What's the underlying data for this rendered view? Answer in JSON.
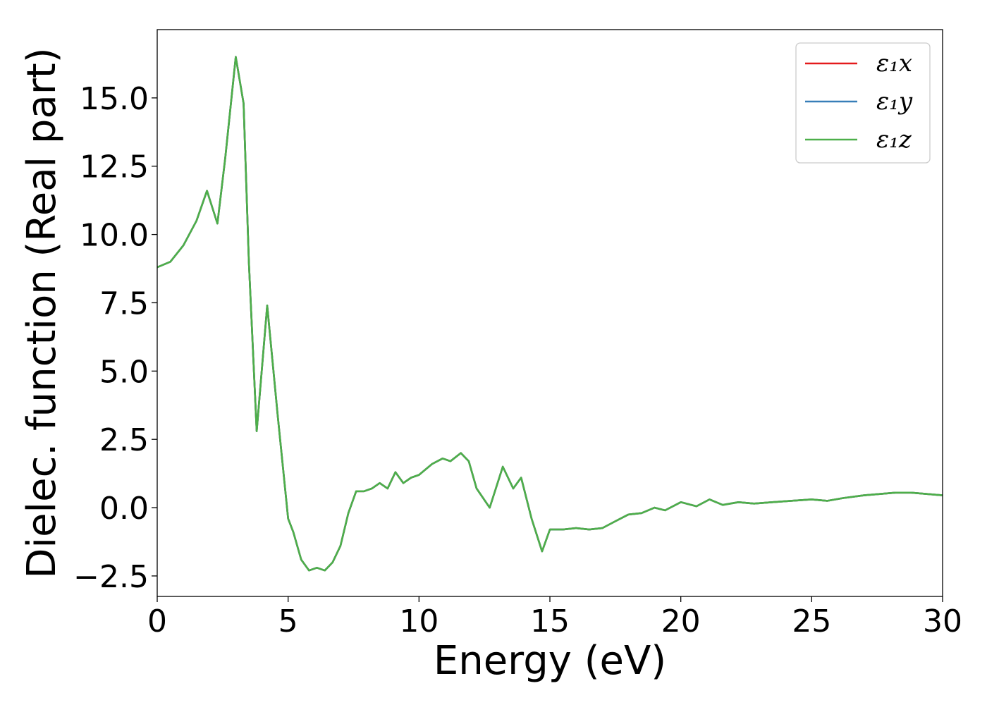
{
  "chart_data": {
    "type": "line",
    "title": "",
    "xlabel": "Energy (eV)",
    "ylabel": "Dielec. function (Real part)",
    "xlim": [
      0,
      30
    ],
    "ylim": [
      -3.25,
      17.5
    ],
    "xticks": [
      0,
      5,
      10,
      15,
      20,
      25,
      30
    ],
    "xtick_labels": [
      "0",
      "5",
      "10",
      "15",
      "20",
      "25",
      "30"
    ],
    "yticks": [
      -2.5,
      0,
      2.5,
      5,
      7.5,
      10,
      12.5,
      15
    ],
    "ytick_labels": [
      "−2.5",
      "0.0",
      "2.5",
      "5.0",
      "7.5",
      "10.0",
      "12.5",
      "15.0"
    ],
    "grid": false,
    "legend_position": "top-right",
    "x": [
      0,
      0.5,
      1.0,
      1.5,
      1.9,
      2.3,
      2.6,
      3.0,
      3.3,
      3.5,
      3.8,
      4.2,
      4.6,
      5.0,
      5.2,
      5.5,
      5.8,
      6.1,
      6.4,
      6.7,
      7.0,
      7.3,
      7.6,
      7.9,
      8.2,
      8.5,
      8.8,
      9.1,
      9.4,
      9.7,
      10.0,
      10.5,
      10.9,
      11.2,
      11.6,
      11.9,
      12.2,
      12.7,
      13.2,
      13.6,
      13.9,
      14.3,
      14.7,
      15.0,
      15.5,
      16.0,
      16.5,
      17.0,
      17.5,
      18.0,
      18.5,
      19.0,
      19.4,
      20.0,
      20.6,
      21.1,
      21.6,
      22.2,
      22.8,
      23.5,
      24.2,
      25.0,
      25.6,
      26.2,
      27.0,
      27.6,
      28.2,
      28.8,
      29.4,
      30.0
    ],
    "series": [
      {
        "name": "ε₁x",
        "color": "#e41a1c",
        "y": [
          8.8,
          9.0,
          9.6,
          10.5,
          11.6,
          10.4,
          12.8,
          16.5,
          14.8,
          9.0,
          2.8,
          7.4,
          3.4,
          -0.4,
          -0.9,
          -1.9,
          -2.3,
          -2.2,
          -2.3,
          -2.0,
          -1.4,
          -0.2,
          0.6,
          0.6,
          0.7,
          0.9,
          0.7,
          1.3,
          0.9,
          1.1,
          1.2,
          1.6,
          1.8,
          1.7,
          2.0,
          1.7,
          0.7,
          0.0,
          1.5,
          0.7,
          1.1,
          -0.4,
          -1.6,
          -0.8,
          -0.8,
          -0.75,
          -0.8,
          -0.75,
          -0.5,
          -0.25,
          -0.2,
          0.0,
          -0.1,
          0.2,
          0.05,
          0.3,
          0.1,
          0.2,
          0.15,
          0.2,
          0.25,
          0.3,
          0.25,
          0.35,
          0.45,
          0.5,
          0.55,
          0.55,
          0.5,
          0.45
        ]
      },
      {
        "name": "ε₁y",
        "color": "#377eb8",
        "y": [
          8.8,
          9.0,
          9.6,
          10.5,
          11.6,
          10.4,
          12.8,
          16.5,
          14.8,
          9.0,
          2.8,
          7.4,
          3.4,
          -0.4,
          -0.9,
          -1.9,
          -2.3,
          -2.2,
          -2.3,
          -2.0,
          -1.4,
          -0.2,
          0.6,
          0.6,
          0.7,
          0.9,
          0.7,
          1.3,
          0.9,
          1.1,
          1.2,
          1.6,
          1.8,
          1.7,
          2.0,
          1.7,
          0.7,
          0.0,
          1.5,
          0.7,
          1.1,
          -0.4,
          -1.6,
          -0.8,
          -0.8,
          -0.75,
          -0.8,
          -0.75,
          -0.5,
          -0.25,
          -0.2,
          0.0,
          -0.1,
          0.2,
          0.05,
          0.3,
          0.1,
          0.2,
          0.15,
          0.2,
          0.25,
          0.3,
          0.25,
          0.35,
          0.45,
          0.5,
          0.55,
          0.55,
          0.5,
          0.45
        ]
      },
      {
        "name": "ε₁z",
        "color": "#4daf4a",
        "y": [
          8.8,
          9.0,
          9.6,
          10.5,
          11.6,
          10.4,
          12.8,
          16.5,
          14.8,
          9.0,
          2.8,
          7.4,
          3.4,
          -0.4,
          -0.9,
          -1.9,
          -2.3,
          -2.2,
          -2.3,
          -2.0,
          -1.4,
          -0.2,
          0.6,
          0.6,
          0.7,
          0.9,
          0.7,
          1.3,
          0.9,
          1.1,
          1.2,
          1.6,
          1.8,
          1.7,
          2.0,
          1.7,
          0.7,
          0.0,
          1.5,
          0.7,
          1.1,
          -0.4,
          -1.6,
          -0.8,
          -0.8,
          -0.75,
          -0.8,
          -0.75,
          -0.5,
          -0.25,
          -0.2,
          0.0,
          -0.1,
          0.2,
          0.05,
          0.3,
          0.1,
          0.2,
          0.15,
          0.2,
          0.25,
          0.3,
          0.25,
          0.35,
          0.45,
          0.5,
          0.55,
          0.55,
          0.5,
          0.45
        ]
      }
    ]
  }
}
